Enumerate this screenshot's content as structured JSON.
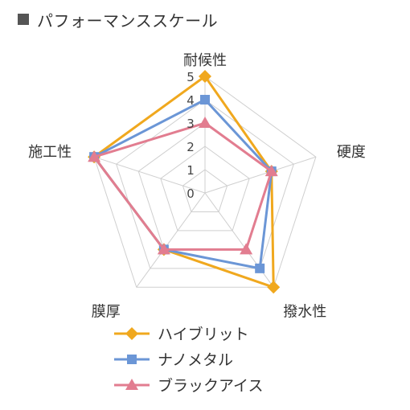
{
  "header": {
    "title": "パフォーマンススケール"
  },
  "chart_data": {
    "type": "radar",
    "title": "パフォーマンススケール",
    "axes": [
      "耐候性",
      "硬度",
      "撥水性",
      "膜厚",
      "施工性"
    ],
    "rlim": [
      0,
      5
    ],
    "ticks": [
      "0",
      "1",
      "2",
      "3",
      "4",
      "5"
    ],
    "grid": true,
    "legend_position": "bottom",
    "series": [
      {
        "name": "ハイブリット",
        "color": "#f0a81e",
        "marker": "diamond",
        "values": [
          5,
          3,
          5,
          3,
          5
        ]
      },
      {
        "name": "ナノメタル",
        "color": "#6b96d6",
        "marker": "square",
        "values": [
          4,
          3,
          4,
          3,
          5
        ]
      },
      {
        "name": "ブラックアイス",
        "color": "#e27d90",
        "marker": "triangle",
        "values": [
          3,
          3,
          3,
          3,
          5
        ]
      }
    ]
  }
}
